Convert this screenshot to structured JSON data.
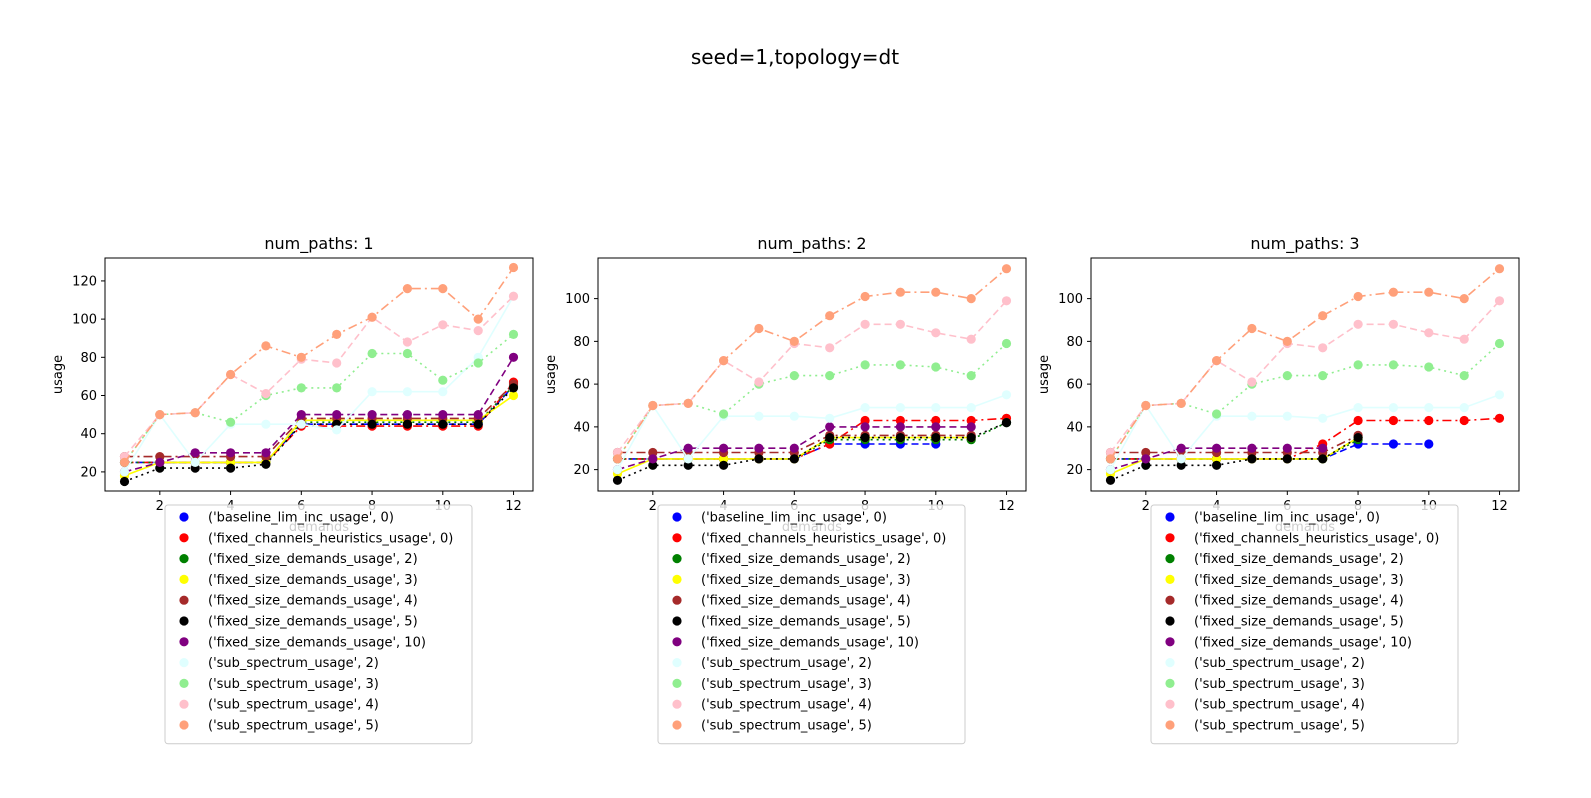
{
  "suptitle": "seed=1,topology=dt",
  "series_styles": [
    {
      "name": "('baseline_lim_inc_usage', 0)",
      "color": "#0000ff",
      "dash": "dashed"
    },
    {
      "name": "('fixed_channels_heuristics_usage', 0)",
      "color": "#ff0000",
      "dash": "dashdot"
    },
    {
      "name": "('fixed_size_demands_usage', 2)",
      "color": "#008000",
      "dash": "dotted"
    },
    {
      "name": "('fixed_size_demands_usage', 3)",
      "color": "#ffff00",
      "dash": "solid"
    },
    {
      "name": "('fixed_size_demands_usage', 4)",
      "color": "#a52a2a",
      "dash": "dashdot"
    },
    {
      "name": "('fixed_size_demands_usage', 5)",
      "color": "#000000",
      "dash": "dotted"
    },
    {
      "name": "('fixed_size_demands_usage', 10)",
      "color": "#800080",
      "dash": "dashed"
    },
    {
      "name": "('sub_spectrum_usage', 2)",
      "color": "#e0ffff",
      "dash": "solid"
    },
    {
      "name": "('sub_spectrum_usage', 3)",
      "color": "#90ee90",
      "dash": "dotted"
    },
    {
      "name": "('sub_spectrum_usage', 4)",
      "color": "#ffc0cb",
      "dash": "dashed"
    },
    {
      "name": "('sub_spectrum_usage', 5)",
      "color": "#ffa07a",
      "dash": "dashdot"
    }
  ],
  "chart_data": [
    {
      "type": "line",
      "title": "num_paths: 1",
      "xlabel": "demands",
      "ylabel": "usage",
      "xlim": [
        0.45,
        12.55
      ],
      "ylim": [
        10,
        132
      ],
      "xticks": [
        2,
        4,
        6,
        8,
        10,
        12
      ],
      "yticks": [
        20,
        40,
        60,
        80,
        100,
        120
      ],
      "legend": "below",
      "x": [
        1,
        2,
        3,
        4,
        5,
        6,
        7,
        8,
        9,
        10,
        11,
        12
      ],
      "series": [
        {
          "name": "('baseline_lim_inc_usage', 0)",
          "values": [
            25,
            25,
            25,
            25,
            25,
            45,
            45,
            45,
            45,
            45,
            45,
            65
          ]
        },
        {
          "name": "('fixed_channels_heuristics_usage', 0)",
          "values": [
            25,
            25,
            25,
            25,
            25,
            44,
            44,
            44,
            44,
            44,
            44,
            67
          ]
        },
        {
          "name": "('fixed_size_demands_usage', 2)",
          "values": [
            25,
            25,
            25,
            25,
            25,
            46,
            46,
            46,
            46,
            46,
            46,
            65
          ]
        },
        {
          "name": "('fixed_size_demands_usage', 3)",
          "values": [
            18,
            25,
            25,
            25,
            25,
            47,
            47,
            47,
            47,
            47,
            47,
            60
          ]
        },
        {
          "name": "('fixed_size_demands_usage', 4)",
          "values": [
            28,
            28,
            28,
            28,
            28,
            48,
            48,
            48,
            48,
            48,
            48,
            66
          ]
        },
        {
          "name": "('fixed_size_demands_usage', 5)",
          "values": [
            15,
            22,
            22,
            22,
            24,
            45,
            45,
            45,
            45,
            45,
            45,
            64
          ]
        },
        {
          "name": "('fixed_size_demands_usage', 10)",
          "values": [
            20,
            25,
            30,
            30,
            30,
            50,
            50,
            50,
            50,
            50,
            50,
            80
          ]
        },
        {
          "name": "('sub_spectrum_usage', 2)",
          "values": [
            20,
            50,
            25,
            45,
            45,
            45,
            42,
            62,
            62,
            62,
            80,
            112
          ]
        },
        {
          "name": "('sub_spectrum_usage', 3)",
          "values": [
            25,
            50,
            51,
            46,
            60,
            64,
            64,
            82,
            82,
            68,
            77,
            92
          ]
        },
        {
          "name": "('sub_spectrum_usage', 4)",
          "values": [
            28,
            50,
            51,
            71,
            61,
            79,
            77,
            101,
            88,
            97,
            94,
            112
          ]
        },
        {
          "name": "('sub_spectrum_usage', 5)",
          "values": [
            25,
            50,
            51,
            71,
            86,
            80,
            92,
            101,
            116,
            116,
            100,
            127
          ]
        }
      ]
    },
    {
      "type": "line",
      "title": "num_paths: 2",
      "xlabel": "demands",
      "ylabel": "usage",
      "xlim": [
        0.45,
        12.55
      ],
      "ylim": [
        10,
        119
      ],
      "xticks": [
        2,
        4,
        6,
        8,
        10,
        12
      ],
      "yticks": [
        20,
        40,
        60,
        80,
        100
      ],
      "legend": "below",
      "x": [
        1,
        2,
        3,
        4,
        5,
        6,
        7,
        8,
        9,
        10,
        11,
        12
      ],
      "series": [
        {
          "name": "('baseline_lim_inc_usage', 0)",
          "values": [
            25,
            25,
            25,
            25,
            25,
            25,
            32,
            32,
            32,
            32,
            null,
            null
          ]
        },
        {
          "name": "('fixed_channels_heuristics_usage', 0)",
          "values": [
            25,
            25,
            25,
            25,
            25,
            25,
            32,
            43,
            43,
            43,
            43,
            44
          ]
        },
        {
          "name": "('fixed_size_demands_usage', 2)",
          "values": [
            25,
            25,
            25,
            25,
            25,
            25,
            34,
            34,
            34,
            34,
            34,
            42
          ]
        },
        {
          "name": "('fixed_size_demands_usage', 3)",
          "values": [
            18,
            25,
            25,
            25,
            25,
            25,
            35,
            35,
            35,
            35,
            35,
            null
          ]
        },
        {
          "name": "('fixed_size_demands_usage', 4)",
          "values": [
            28,
            28,
            28,
            28,
            28,
            28,
            36,
            36,
            36,
            36,
            36,
            null
          ]
        },
        {
          "name": "('fixed_size_demands_usage', 5)",
          "values": [
            15,
            22,
            22,
            22,
            25,
            25,
            35,
            35,
            35,
            35,
            35,
            42
          ]
        },
        {
          "name": "('fixed_size_demands_usage', 10)",
          "values": [
            20,
            25,
            30,
            30,
            30,
            30,
            40,
            40,
            40,
            40,
            40,
            null
          ]
        },
        {
          "name": "('sub_spectrum_usage', 2)",
          "values": [
            20,
            50,
            25,
            45,
            45,
            45,
            44,
            49,
            49,
            49,
            49,
            55
          ]
        },
        {
          "name": "('sub_spectrum_usage', 3)",
          "values": [
            25,
            50,
            51,
            46,
            60,
            64,
            64,
            69,
            69,
            68,
            64,
            79
          ]
        },
        {
          "name": "('sub_spectrum_usage', 4)",
          "values": [
            28,
            50,
            51,
            71,
            61,
            79,
            77,
            88,
            88,
            84,
            81,
            99
          ]
        },
        {
          "name": "('sub_spectrum_usage', 5)",
          "values": [
            25,
            50,
            51,
            71,
            86,
            80,
            92,
            101,
            103,
            103,
            100,
            114
          ]
        }
      ]
    },
    {
      "type": "line",
      "title": "num_paths: 3",
      "xlabel": "demands",
      "ylabel": "usage",
      "xlim": [
        0.45,
        12.55
      ],
      "ylim": [
        10,
        119
      ],
      "xticks": [
        2,
        4,
        6,
        8,
        10,
        12
      ],
      "yticks": [
        20,
        40,
        60,
        80,
        100
      ],
      "legend": "below",
      "x": [
        1,
        2,
        3,
        4,
        5,
        6,
        7,
        8,
        9,
        10,
        11,
        12
      ],
      "series": [
        {
          "name": "('baseline_lim_inc_usage', 0)",
          "values": [
            25,
            25,
            25,
            25,
            25,
            25,
            25,
            32,
            32,
            32,
            null,
            null
          ]
        },
        {
          "name": "('fixed_channels_heuristics_usage', 0)",
          "values": [
            25,
            25,
            25,
            25,
            25,
            25,
            32,
            43,
            43,
            43,
            43,
            44
          ]
        },
        {
          "name": "('fixed_size_demands_usage', 2)",
          "values": [
            25,
            25,
            25,
            25,
            25,
            25,
            25,
            34,
            null,
            null,
            null,
            null
          ]
        },
        {
          "name": "('fixed_size_demands_usage', 3)",
          "values": [
            18,
            25,
            25,
            25,
            25,
            25,
            25,
            35,
            null,
            null,
            null,
            null
          ]
        },
        {
          "name": "('fixed_size_demands_usage', 4)",
          "values": [
            28,
            28,
            28,
            28,
            28,
            28,
            28,
            36,
            null,
            null,
            null,
            null
          ]
        },
        {
          "name": "('fixed_size_demands_usage', 5)",
          "values": [
            15,
            22,
            22,
            22,
            25,
            25,
            25,
            35,
            null,
            null,
            null,
            null
          ]
        },
        {
          "name": "('fixed_size_demands_usage', 10)",
          "values": [
            20,
            25,
            30,
            30,
            30,
            30,
            30,
            null,
            null,
            null,
            null,
            null
          ]
        },
        {
          "name": "('sub_spectrum_usage', 2)",
          "values": [
            20,
            50,
            25,
            45,
            45,
            45,
            44,
            49,
            49,
            49,
            49,
            55
          ]
        },
        {
          "name": "('sub_spectrum_usage', 3)",
          "values": [
            25,
            50,
            51,
            46,
            60,
            64,
            64,
            69,
            69,
            68,
            64,
            79
          ]
        },
        {
          "name": "('sub_spectrum_usage', 4)",
          "values": [
            28,
            50,
            51,
            71,
            61,
            79,
            77,
            88,
            88,
            84,
            81,
            99
          ]
        },
        {
          "name": "('sub_spectrum_usage', 5)",
          "values": [
            25,
            50,
            51,
            71,
            86,
            80,
            92,
            101,
            103,
            103,
            100,
            114
          ]
        }
      ]
    }
  ]
}
